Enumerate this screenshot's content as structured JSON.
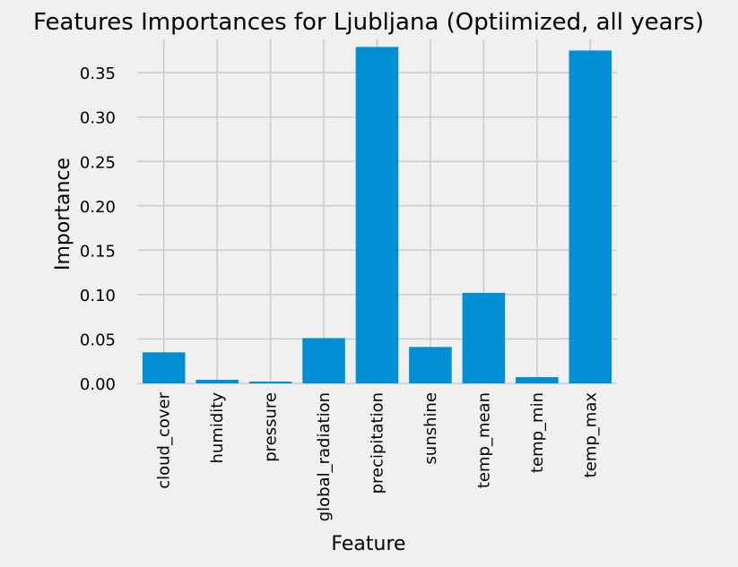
{
  "chart_data": {
    "type": "bar",
    "title": "Features Importances for Ljubljana (Optiimized, all years)",
    "xlabel": "Feature",
    "ylabel": "Importance",
    "categories": [
      "cloud_cover",
      "humidity",
      "pressure",
      "global_radiation",
      "precipitation",
      "sunshine",
      "temp_mean",
      "temp_min",
      "temp_max"
    ],
    "values": [
      0.035,
      0.004,
      0.002,
      0.051,
      0.379,
      0.041,
      0.102,
      0.007,
      0.375
    ],
    "ylim": [
      0,
      0.3875
    ],
    "yticks": [
      0.0,
      0.05,
      0.1,
      0.15,
      0.2,
      0.25,
      0.3,
      0.35
    ],
    "ytick_labels": [
      "0.00",
      "0.05",
      "0.10",
      "0.15",
      "0.20",
      "0.25",
      "0.30",
      "0.35"
    ],
    "grid": true,
    "bar_color": "#008fd5",
    "background_color": "#f0f0f0",
    "grid_color": "#cbcbcb"
  }
}
